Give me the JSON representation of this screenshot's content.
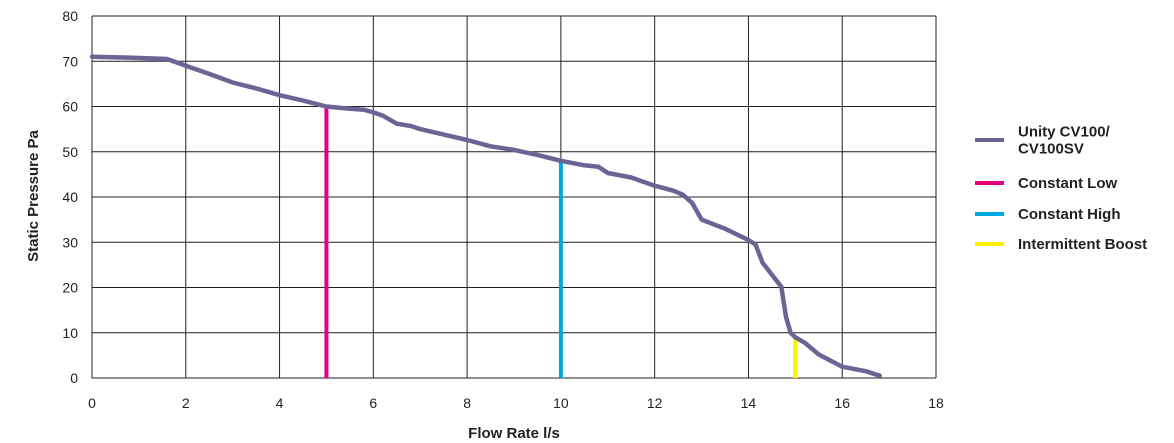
{
  "chart_data": {
    "type": "line",
    "xlabel": "Flow Rate l/s",
    "ylabel": "Static Pressure Pa",
    "xlim": [
      0,
      18
    ],
    "ylim": [
      0,
      80
    ],
    "x_ticks": [
      "0",
      "2",
      "4",
      "6",
      "8",
      "10",
      "12",
      "14",
      "16",
      "18"
    ],
    "y_ticks": [
      "0",
      "10",
      "20",
      "30",
      "40",
      "50",
      "60",
      "70",
      "80"
    ],
    "grid": true,
    "legend_position": "right",
    "series": [
      {
        "name": "Unity CV100/ CV100SV",
        "legend_lines": [
          "Unity CV100/",
          "CV100SV"
        ],
        "color": "#6b6595",
        "x": [
          0,
          0.8,
          1.6,
          2,
          2.5,
          3,
          3.5,
          4,
          4.5,
          5,
          5.5,
          5.8,
          6,
          6.2,
          6.5,
          6.8,
          7,
          7.5,
          8,
          8.5,
          9,
          9.5,
          10,
          10.5,
          10.8,
          11,
          11.5,
          12,
          12.4,
          12.6,
          12.8,
          13,
          13.5,
          14,
          14.15,
          14.3,
          14.6,
          14.7,
          14.8,
          14.9,
          15,
          15.2,
          15.5,
          16,
          16.5,
          16.8
        ],
        "y": [
          71,
          70.8,
          70.5,
          69,
          67.2,
          65.3,
          64,
          62.5,
          61.3,
          60,
          59.5,
          59.3,
          58.7,
          58,
          56.2,
          55.7,
          55,
          53.8,
          52.6,
          51.2,
          50.4,
          49.3,
          48,
          47,
          46.7,
          45.3,
          44.3,
          42.5,
          41.4,
          40.5,
          38.7,
          35,
          33,
          30.5,
          29.5,
          25.5,
          21.5,
          20.2,
          13.5,
          10,
          9,
          7.8,
          5.2,
          2.5,
          1.5,
          0.5
        ]
      },
      {
        "name": "Constant Low",
        "color": "#e6007e",
        "x": [
          5,
          5
        ],
        "y": [
          0,
          60
        ]
      },
      {
        "name": "Constant High",
        "color": "#00a8e1",
        "x": [
          10,
          10
        ],
        "y": [
          0,
          48
        ]
      },
      {
        "name": "Intermittent Boost",
        "color": "#fff200",
        "x": [
          15,
          15
        ],
        "y": [
          0,
          8.7
        ]
      }
    ]
  }
}
